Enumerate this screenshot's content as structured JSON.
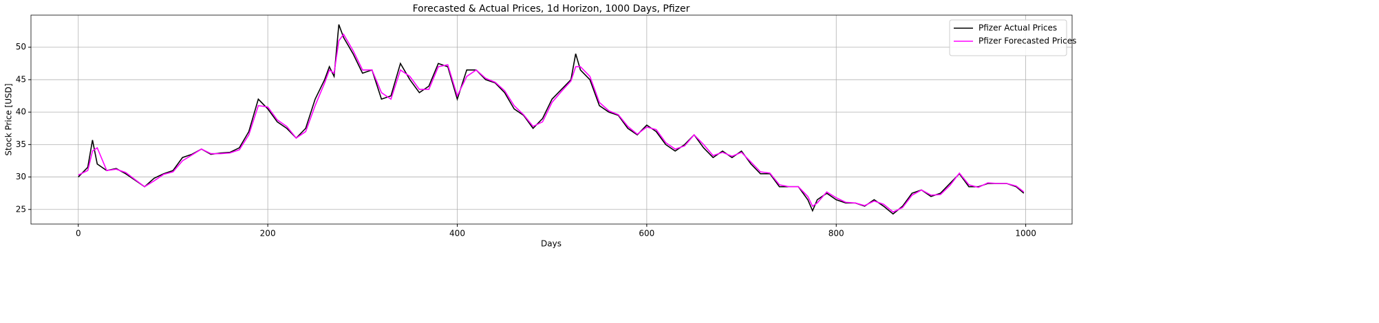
{
  "chart_data": {
    "type": "line",
    "title": "Forecasted & Actual Prices, 1d Horizon, 1000 Days, Pfizer",
    "xlabel": "Days",
    "ylabel": "Stock Price [USD]",
    "x": [
      0,
      10,
      15,
      20,
      30,
      40,
      50,
      60,
      70,
      80,
      90,
      100,
      110,
      120,
      130,
      140,
      150,
      160,
      170,
      180,
      190,
      200,
      210,
      220,
      230,
      240,
      250,
      260,
      265,
      270,
      275,
      280,
      290,
      300,
      310,
      320,
      330,
      340,
      350,
      360,
      370,
      380,
      390,
      400,
      410,
      420,
      430,
      440,
      450,
      460,
      470,
      480,
      490,
      500,
      510,
      520,
      525,
      530,
      540,
      550,
      560,
      570,
      580,
      590,
      600,
      610,
      620,
      630,
      640,
      650,
      660,
      670,
      680,
      690,
      700,
      710,
      720,
      730,
      740,
      750,
      760,
      770,
      775,
      780,
      790,
      800,
      810,
      820,
      830,
      840,
      850,
      860,
      870,
      880,
      890,
      900,
      910,
      920,
      930,
      940,
      950,
      960,
      970,
      980,
      990,
      998
    ],
    "series": [
      {
        "name": "Pfizer Actual Prices",
        "color": "#000000",
        "values": [
          30,
          31.5,
          35.7,
          32,
          31,
          31.3,
          30.5,
          29.5,
          28.5,
          29.8,
          30.5,
          31,
          33,
          33.5,
          34.3,
          33.5,
          33.7,
          33.8,
          34.5,
          37,
          42,
          40.5,
          38.5,
          37.5,
          36,
          37.5,
          42,
          45,
          47,
          45.5,
          53.5,
          51.5,
          49,
          46,
          46.5,
          42,
          42.5,
          47.5,
          45,
          43,
          44,
          47.5,
          47,
          42,
          46.5,
          46.5,
          45,
          44.5,
          43,
          40.5,
          39.5,
          37.5,
          39,
          42,
          43.5,
          45,
          49,
          46.5,
          45,
          41,
          40,
          39.5,
          37.5,
          36.5,
          38,
          37,
          35,
          34,
          35,
          36.5,
          34.5,
          33,
          34,
          33,
          34,
          32,
          30.5,
          30.5,
          28.5,
          28.5,
          28.5,
          26.5,
          24.8,
          26.5,
          27.5,
          26.5,
          26,
          26,
          25.5,
          26.5,
          25.5,
          24.3,
          25.5,
          27.5,
          28,
          27,
          27.5,
          29,
          30.5,
          28.5,
          28.5,
          29,
          29,
          29,
          28.5,
          27.5
        ]
      },
      {
        "name": "Pfizer Forecasted Prices",
        "color": "#ff00ff",
        "values": [
          30.3,
          31,
          34,
          34.5,
          31,
          31.2,
          30.7,
          29.6,
          28.5,
          29.4,
          30.4,
          30.8,
          32.5,
          33.4,
          34.3,
          33.6,
          33.6,
          33.7,
          34.2,
          36.5,
          41,
          40.8,
          38.8,
          37.8,
          36,
          37,
          41,
          44.5,
          46.5,
          46,
          51,
          52,
          49.5,
          46.5,
          46.5,
          43,
          42,
          46.5,
          45.5,
          43.5,
          43.5,
          47,
          47.3,
          42.5,
          45.5,
          46.5,
          45.2,
          44.6,
          43.3,
          41,
          39.6,
          37.8,
          38.5,
          41.5,
          43.2,
          44.8,
          47,
          47,
          45.5,
          41.5,
          40.2,
          39.6,
          37.8,
          36.6,
          37.7,
          37.3,
          35.3,
          34.3,
          34.8,
          36.5,
          35,
          33.3,
          33.8,
          33.2,
          33.8,
          32.3,
          30.8,
          30.6,
          28.8,
          28.5,
          28.5,
          27,
          25.5,
          26,
          27.7,
          26.8,
          26.1,
          26,
          25.6,
          26.3,
          25.8,
          24.6,
          25.3,
          27.2,
          28,
          27.2,
          27.3,
          28.7,
          30.6,
          28.8,
          28.4,
          29.1,
          29,
          29,
          28.6,
          27.7
        ]
      }
    ],
    "xlim": [
      -49.95,
      1048.95
    ],
    "xticks": [
      0,
      200,
      400,
      600,
      800,
      1000
    ],
    "ylim": [
      22.75,
      54.95
    ],
    "yticks": [
      25,
      30,
      35,
      40,
      45,
      50
    ],
    "grid": true,
    "legend": "upper right"
  }
}
